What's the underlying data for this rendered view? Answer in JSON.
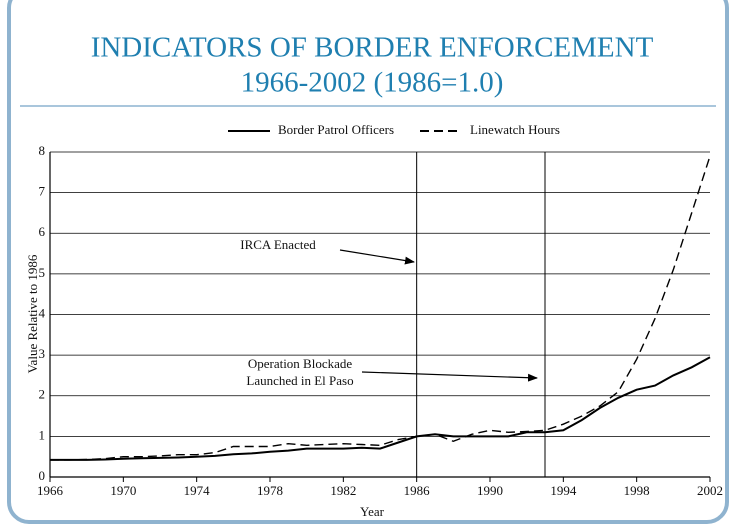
{
  "chart_data": {
    "type": "line",
    "title": "INDICATORS OF BORDER ENFORCEMENT",
    "subtitle": "1966-2002 (1986=1.0)",
    "x_label": "Year",
    "y_label": "Value Relative to 1986",
    "x": [
      1966,
      1967,
      1968,
      1969,
      1970,
      1971,
      1972,
      1973,
      1974,
      1975,
      1976,
      1977,
      1978,
      1979,
      1980,
      1981,
      1982,
      1983,
      1984,
      1985,
      1986,
      1987,
      1988,
      1989,
      1990,
      1991,
      1992,
      1993,
      1994,
      1995,
      1996,
      1997,
      1998,
      1999,
      2000,
      2001,
      2002
    ],
    "series": [
      {
        "name": "Border Patrol Officers",
        "color": "#000000",
        "line_style": "solid",
        "values": [
          0.42,
          0.42,
          0.42,
          0.43,
          0.45,
          0.46,
          0.47,
          0.48,
          0.5,
          0.52,
          0.56,
          0.58,
          0.62,
          0.65,
          0.7,
          0.7,
          0.7,
          0.72,
          0.7,
          0.85,
          1.0,
          1.05,
          1.0,
          1.0,
          1.0,
          1.0,
          1.1,
          1.1,
          1.15,
          1.4,
          1.7,
          1.95,
          2.15,
          2.25,
          2.5,
          2.7,
          2.95
        ]
      },
      {
        "name": "Linewatch Hours",
        "color": "#000000",
        "line_style": "dashed",
        "values": [
          0.42,
          0.42,
          0.43,
          0.45,
          0.5,
          0.5,
          0.52,
          0.55,
          0.55,
          0.6,
          0.75,
          0.75,
          0.75,
          0.82,
          0.78,
          0.8,
          0.82,
          0.8,
          0.78,
          0.92,
          1.0,
          1.05,
          0.88,
          1.05,
          1.15,
          1.1,
          1.12,
          1.15,
          1.3,
          1.5,
          1.75,
          2.1,
          2.9,
          3.9,
          5.1,
          6.5,
          7.9
        ]
      }
    ],
    "xlim": [
      1966,
      2002
    ],
    "xticks": [
      1966,
      1970,
      1974,
      1978,
      1982,
      1986,
      1990,
      1994,
      1998,
      2002
    ],
    "ylim": [
      0,
      8
    ],
    "yticks": [
      0,
      1,
      2,
      3,
      4,
      5,
      6,
      7,
      8
    ],
    "grid": true,
    "legend": "top",
    "annotations": [
      {
        "lines": [
          "IRCA Enacted"
        ],
        "x": 1986
      },
      {
        "lines": [
          "Operation Blockade",
          "Launched in El Paso"
        ],
        "x": 1993
      }
    ]
  }
}
